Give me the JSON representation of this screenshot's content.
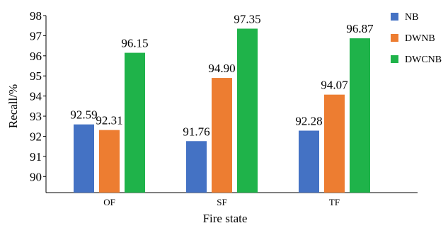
{
  "chart_data": {
    "type": "bar",
    "categories": [
      "OF",
      "SF",
      "TF"
    ],
    "series": [
      {
        "name": "NB",
        "values": [
          92.59,
          91.76,
          92.28
        ],
        "color": "#4472C4"
      },
      {
        "name": "DWNB",
        "values": [
          92.31,
          94.9,
          94.07
        ],
        "color": "#ED7D31"
      },
      {
        "name": "DWCNB",
        "values": [
          96.15,
          97.35,
          96.87
        ],
        "color": "#1FB34A"
      }
    ],
    "data_labels": [
      [
        "92.59",
        "91.76",
        "92.28"
      ],
      [
        "92.31",
        "94.90",
        "94.07"
      ],
      [
        "96.15",
        "97.35",
        "96.87"
      ]
    ],
    "title": "",
    "xlabel": "Fire state",
    "ylabel": "Recall/%",
    "yticks": [
      90,
      91,
      92,
      93,
      94,
      95,
      96,
      97,
      98
    ],
    "ylim": [
      89.2,
      98
    ],
    "grid": false,
    "legend_position": "right"
  }
}
